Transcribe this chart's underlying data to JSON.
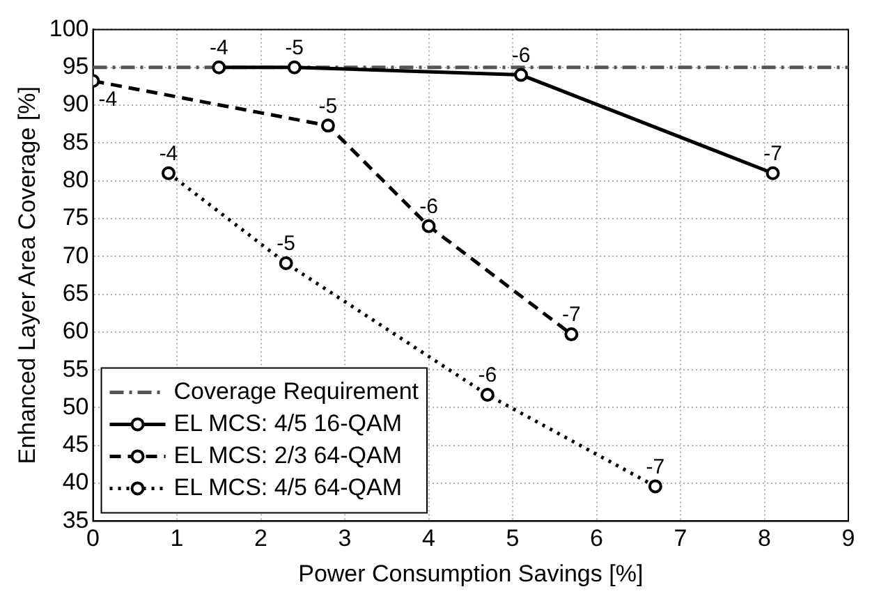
{
  "chart_data": {
    "type": "line",
    "xlabel": "Power Consumption Savings [%]",
    "ylabel": "Enhanced Layer Area Coverage [%]",
    "xlim": [
      0,
      9
    ],
    "xticks": [
      0,
      1,
      2,
      3,
      4,
      5,
      6,
      7,
      8,
      9
    ],
    "ylim": [
      35,
      100
    ],
    "yticks": [
      35,
      40,
      45,
      50,
      55,
      60,
      65,
      70,
      75,
      80,
      85,
      90,
      95,
      100
    ],
    "grid": true,
    "legend": "bottom left",
    "marker": "circle",
    "ref_lines": [
      {
        "axis": "y",
        "value": 95,
        "label": "Coverage Requirement",
        "color": "#555555",
        "line_style": "dashdot"
      }
    ],
    "series": [
      {
        "name": "EL MCS: 4/5 16-QAM",
        "color": "#000000",
        "line_style": "solid",
        "x": [
          1.5,
          2.4,
          5.1,
          8.1
        ],
        "values": [
          95,
          95,
          94,
          81
        ]
      },
      {
        "name": "EL MCS: 2/3 64-QAM",
        "color": "#000000",
        "line_style": "dashed",
        "x": [
          0,
          2.8,
          4,
          5.7
        ],
        "values": [
          93.2,
          87.3,
          74,
          59.7
        ]
      },
      {
        "name": "EL MCS: 4/5 64-QAM",
        "color": "#000000",
        "line_style": "dotted",
        "x": [
          0.9,
          2.3,
          4.7,
          6.7
        ],
        "values": [
          81,
          69.1,
          51.7,
          39.6
        ]
      }
    ],
    "annotations": [
      {
        "text": "-4",
        "x": 1.5,
        "y": 95
      },
      {
        "text": "-5",
        "x": 2.4,
        "y": 95
      },
      {
        "text": "-6",
        "x": 5.1,
        "y": 94
      },
      {
        "text": "-7",
        "x": 8.1,
        "y": 81
      },
      {
        "text": "-4",
        "x": 0,
        "y": 93.2
      },
      {
        "text": "-5",
        "x": 2.8,
        "y": 87.3
      },
      {
        "text": "-6",
        "x": 4,
        "y": 74
      },
      {
        "text": "-7",
        "x": 5.7,
        "y": 59.7
      },
      {
        "text": "-4",
        "x": 0.9,
        "y": 81
      },
      {
        "text": "-5",
        "x": 2.3,
        "y": 69.1
      },
      {
        "text": "-6",
        "x": 4.7,
        "y": 51.7
      },
      {
        "text": "-7",
        "x": 6.7,
        "y": 39.6
      }
    ]
  }
}
